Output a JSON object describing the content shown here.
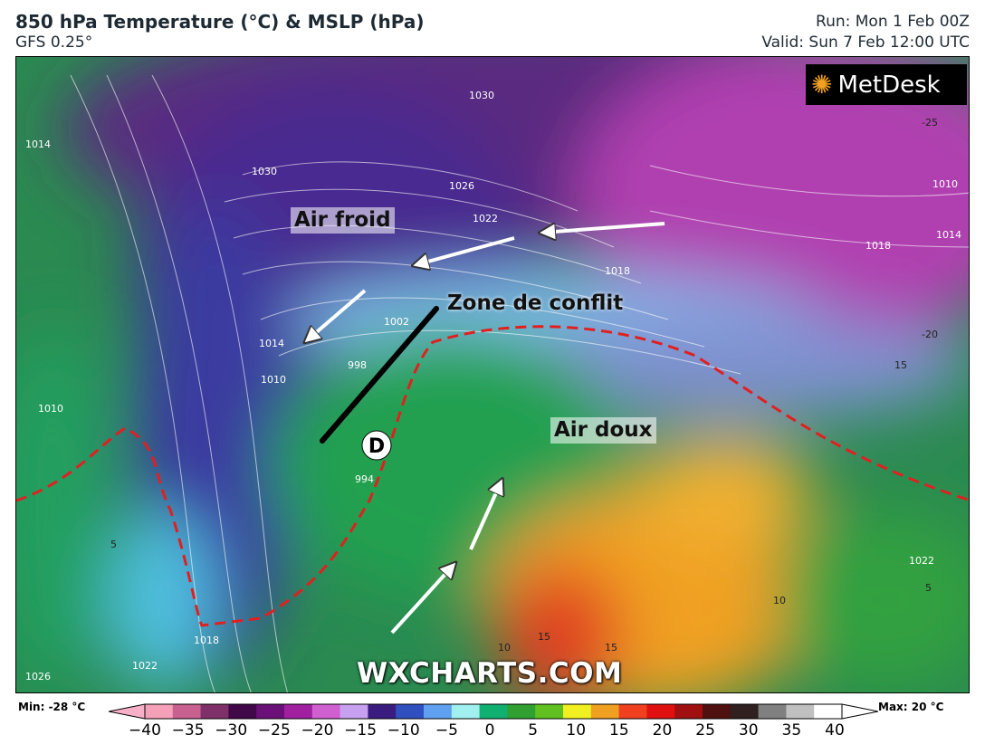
{
  "header": {
    "title": "850 hPa Temperature (°C) & MSLP (hPa)",
    "model": "GFS 0.25°",
    "run": "Run: Mon 1 Feb 00Z",
    "valid": "Valid: Sun 7 Feb 12:00 UTC"
  },
  "map": {
    "annotations": {
      "cold": "Air froid",
      "conflict": "Zone de conflit",
      "warm": "Air doux",
      "low": "D"
    },
    "logo": "MetDesk",
    "watermark": "WXCHARTS.COM",
    "isobar_labels": [
      "1030",
      "1030",
      "1026",
      "1022",
      "1018",
      "1014",
      "1010",
      "1002",
      "998",
      "994",
      "1014",
      "1010",
      "1010",
      "1014",
      "1018",
      "1022",
      "1026",
      "1022",
      "1018"
    ],
    "temp_labels": [
      "-25",
      "-20",
      "15",
      "10",
      "15",
      "15",
      "10",
      "5",
      "5"
    ],
    "colors": {
      "front": "#e02020",
      "arrow_cold": "#3030c0",
      "arrow_warm": "#c03030"
    }
  },
  "colorbar": {
    "min": "Min: -28 °C",
    "max": "Max: 20 °C",
    "ticks": [
      "−40",
      "−35",
      "−30",
      "−25",
      "−20",
      "−15",
      "−10",
      "−5",
      "0",
      "5",
      "10",
      "15",
      "20",
      "25",
      "30",
      "35",
      "40"
    ],
    "colors": [
      "#f4a0b8",
      "#c86090",
      "#803068",
      "#400848",
      "#6a1078",
      "#a020a0",
      "#d060d0",
      "#c8a0f0",
      "#3a1c80",
      "#3050c0",
      "#60a0f0",
      "#a0f0f0",
      "#10b070",
      "#30a030",
      "#60c020",
      "#f0f020",
      "#f0a020",
      "#f04020",
      "#e01010",
      "#a01010",
      "#501010",
      "#302020",
      "#808080",
      "#c0c0c0",
      "#ffffff"
    ]
  }
}
